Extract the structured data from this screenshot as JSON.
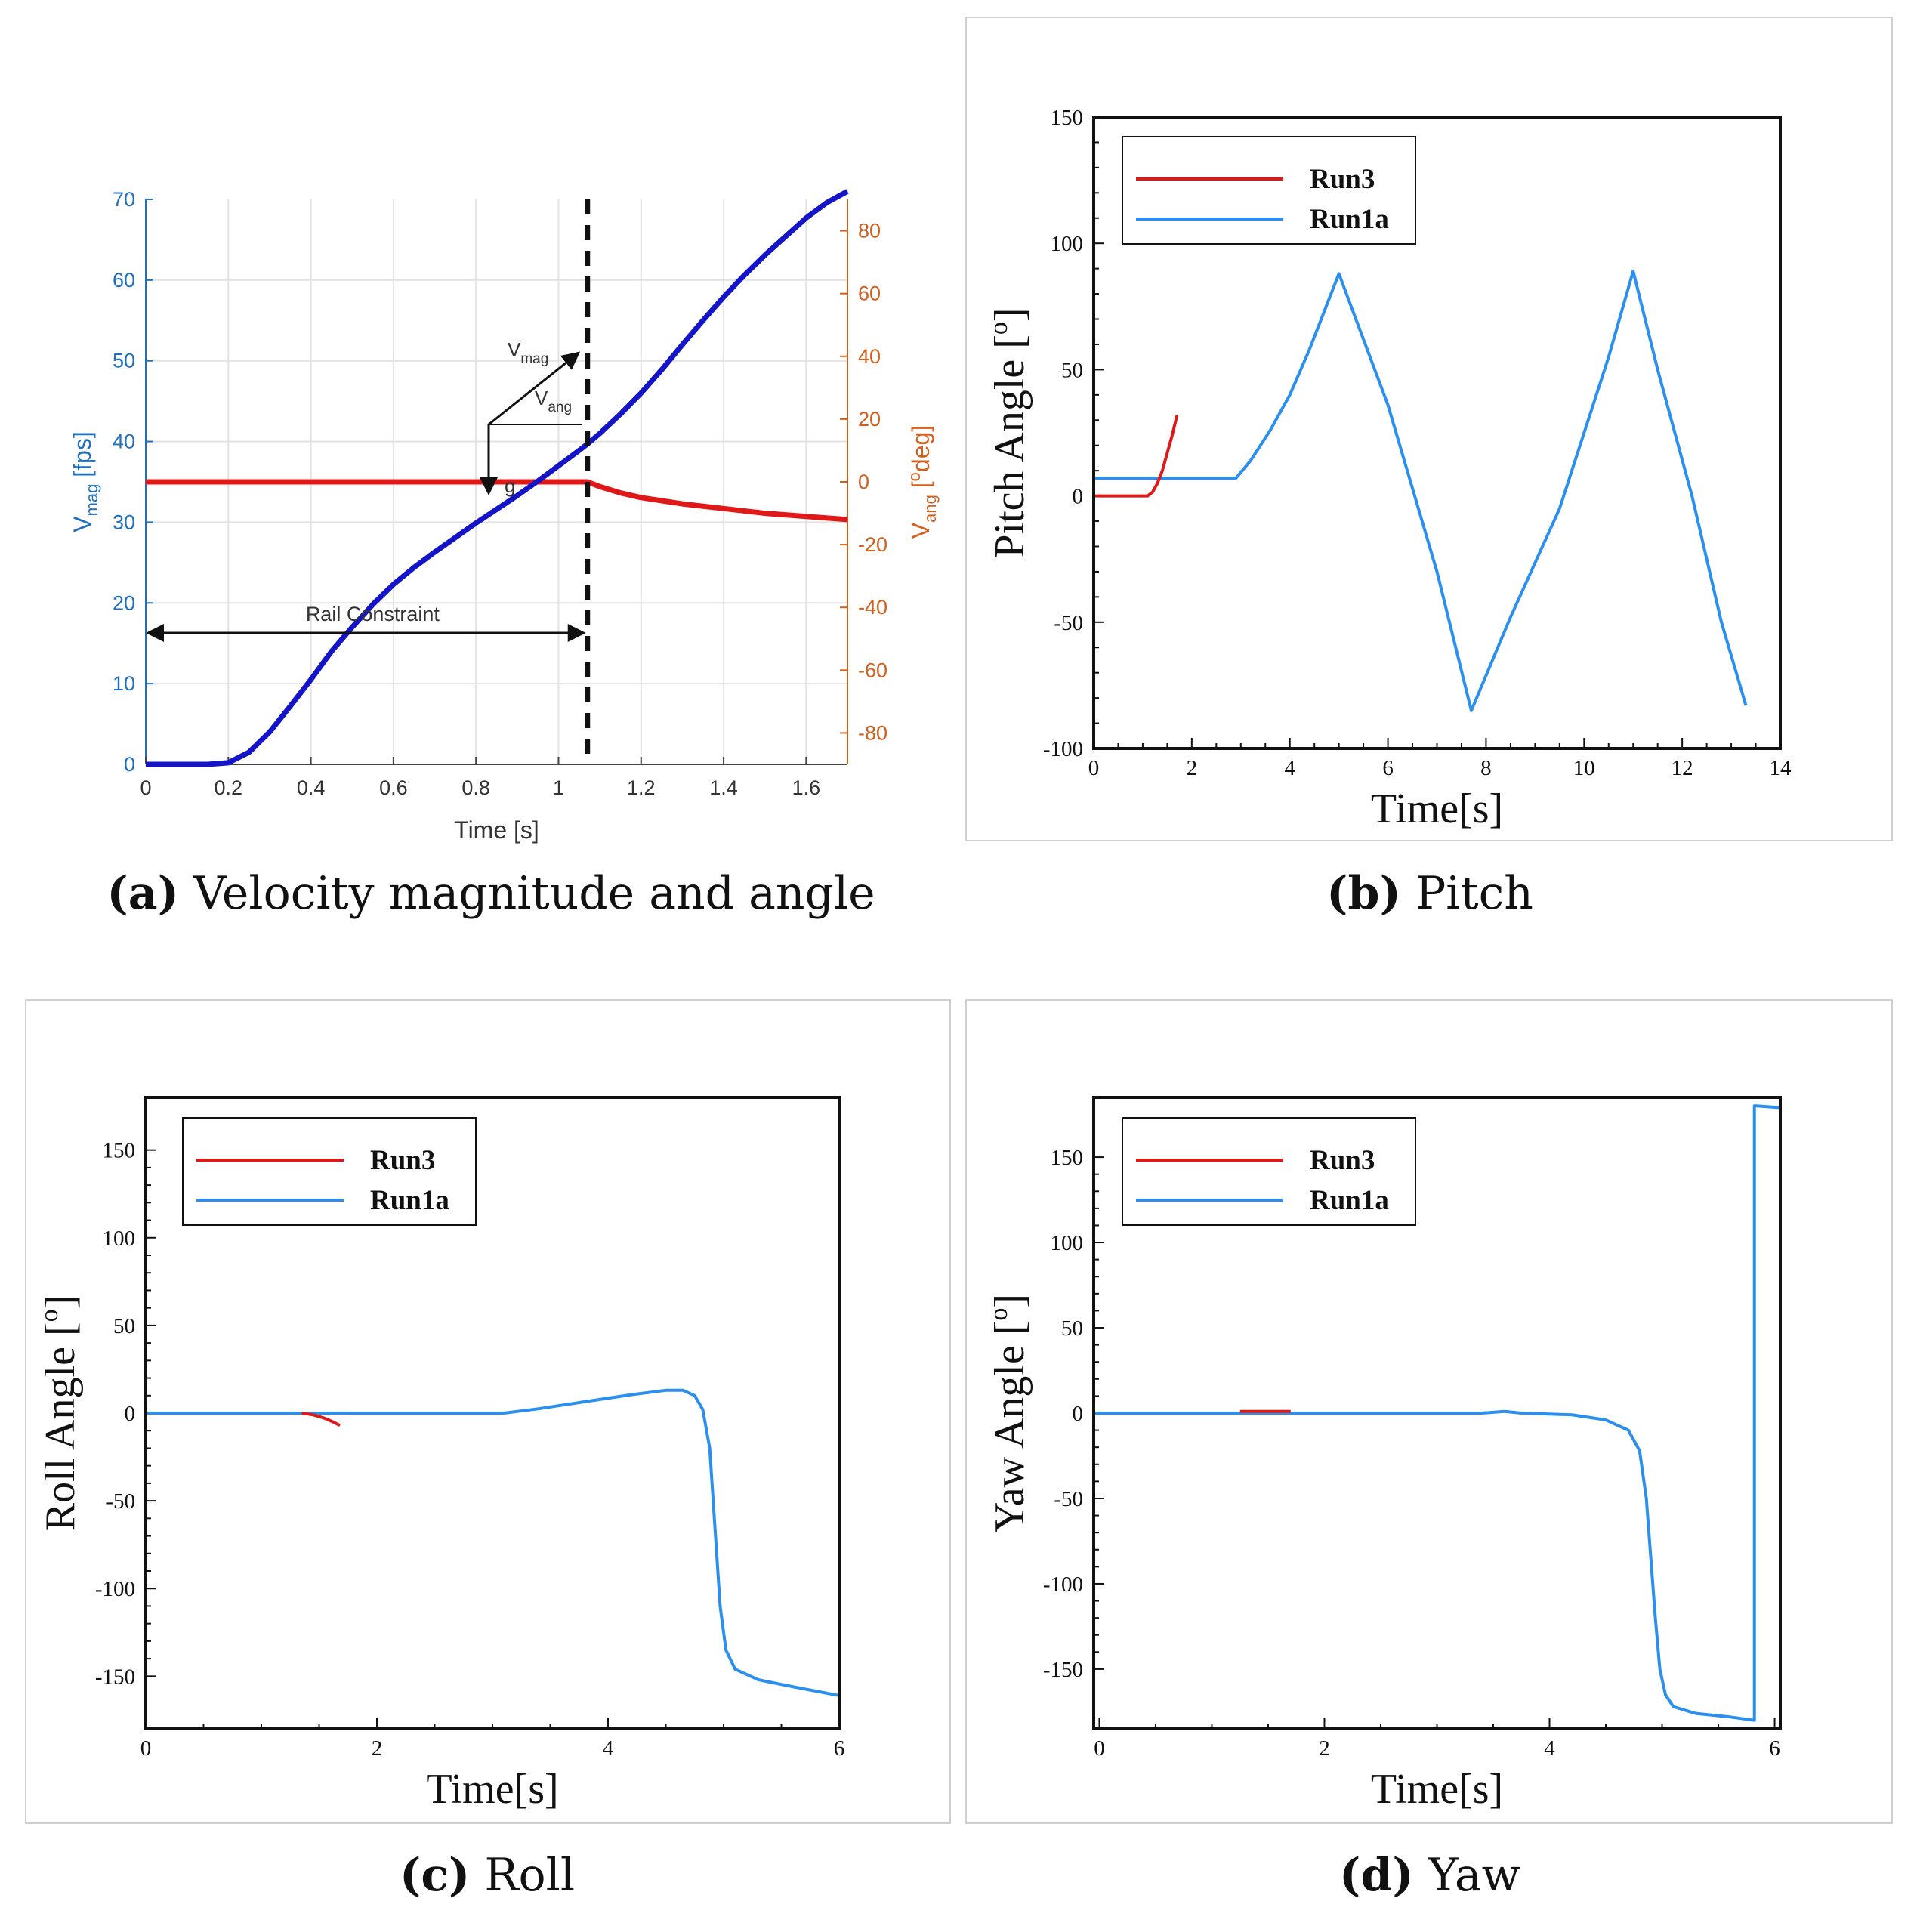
{
  "colors": {
    "mag": "#1f6fbf",
    "ang": "#d35f1f",
    "blue_line": "#1414c8",
    "red_line": "#e01818",
    "run3": "#e01818",
    "run1a": "#2b8ff0"
  },
  "chart_data": [
    {
      "id": "a",
      "type": "line",
      "caption": {
        "letter": "(a)",
        "text": " Velocity magnitude and angle"
      },
      "xlabel": "Time [s]",
      "ylabel_left": {
        "main": "V",
        "sub": "mag",
        "rest": " [fps]"
      },
      "ylabel_right": {
        "main": "V",
        "sub": "ang",
        "rest": " [",
        "sup": "o",
        "rest2": "deg]"
      },
      "xlim": [
        0,
        1.7
      ],
      "ylim_left": [
        0,
        70
      ],
      "ylim_right": [
        -90,
        90
      ],
      "xticks": [
        0,
        0.2,
        0.4,
        0.6,
        0.8,
        1,
        1.2,
        1.4,
        1.6
      ],
      "yticks_left": [
        0,
        10,
        20,
        30,
        40,
        50,
        60,
        70
      ],
      "yticks_right": [
        -80,
        -60,
        -40,
        -20,
        0,
        20,
        40,
        60,
        80
      ],
      "grid": true,
      "series": [
        {
          "name": "V_mag",
          "axis": "left",
          "x": [
            0,
            0.15,
            0.2,
            0.25,
            0.3,
            0.35,
            0.4,
            0.45,
            0.5,
            0.55,
            0.6,
            0.65,
            0.7,
            0.75,
            0.8,
            0.85,
            0.9,
            0.95,
            1.0,
            1.05,
            1.07,
            1.1,
            1.15,
            1.2,
            1.25,
            1.3,
            1.35,
            1.4,
            1.45,
            1.5,
            1.55,
            1.6,
            1.65,
            1.7
          ],
          "values": [
            0,
            0,
            0.2,
            1.5,
            4,
            7.2,
            10.5,
            14,
            17,
            19.8,
            22.3,
            24.4,
            26.3,
            28.1,
            29.9,
            31.6,
            33.3,
            35.1,
            37,
            38.9,
            39.7,
            41,
            43.4,
            46,
            48.9,
            52,
            55,
            57.9,
            60.6,
            63.1,
            65.4,
            67.7,
            69.6,
            71
          ]
        },
        {
          "name": "V_ang",
          "axis": "right",
          "x": [
            0,
            1.0,
            1.07,
            1.1,
            1.15,
            1.2,
            1.3,
            1.4,
            1.5,
            1.6,
            1.7
          ],
          "values": [
            0,
            0,
            0,
            -1.5,
            -3.5,
            -5,
            -7,
            -8.5,
            -10,
            -11,
            -12
          ]
        }
      ],
      "annotations": {
        "vmag": {
          "main": "V",
          "sub": "mag"
        },
        "vang": {
          "main": "V",
          "sub": "ang"
        },
        "g": "g",
        "rail": "Rail Constraint",
        "rail_end_time": 1.07
      }
    },
    {
      "id": "b",
      "type": "line",
      "caption": {
        "letter": "(b)",
        "text": " Pitch"
      },
      "xlabel": "Time[s]",
      "ylabel": "Pitch Angle [",
      "ylabel_sup": "o",
      "ylabel_end": "]",
      "xlim": [
        0,
        14
      ],
      "ylim": [
        -100,
        150
      ],
      "xticks": [
        0,
        2,
        4,
        6,
        8,
        10,
        12,
        14
      ],
      "yticks": [
        -100,
        -50,
        0,
        50,
        100,
        150
      ],
      "legend": [
        "Run3",
        "Run1a"
      ],
      "series": [
        {
          "name": "Run3",
          "x": [
            0,
            1.1,
            1.2,
            1.3,
            1.4,
            1.5,
            1.6,
            1.7
          ],
          "values": [
            0,
            0,
            1.5,
            5,
            10,
            17,
            24,
            32
          ]
        },
        {
          "name": "Run1a",
          "x": [
            0,
            2.9,
            3.2,
            3.6,
            4.0,
            4.4,
            4.8,
            5.0,
            6.0,
            7.0,
            7.7,
            8.5,
            9.5,
            10.5,
            11.0,
            11.5,
            12.2,
            12.8,
            13.3
          ],
          "values": [
            7,
            7,
            14,
            26,
            40,
            58,
            78,
            88,
            36,
            -30,
            -85,
            -48,
            -5,
            55,
            89,
            50,
            0,
            -50,
            -83
          ]
        }
      ]
    },
    {
      "id": "c",
      "type": "line",
      "caption": {
        "letter": "(c)",
        "text": " Roll"
      },
      "xlabel": "Time[s]",
      "ylabel": "Roll Angle [",
      "ylabel_sup": "o",
      "ylabel_end": "]",
      "xlim": [
        0,
        6
      ],
      "ylim": [
        -180,
        180
      ],
      "xticks": [
        0,
        2,
        4,
        6
      ],
      "yticks": [
        -150,
        -100,
        -50,
        0,
        50,
        100,
        150
      ],
      "legend": [
        "Run3",
        "Run1a"
      ],
      "series": [
        {
          "name": "Run3",
          "x": [
            1.35,
            1.45,
            1.55,
            1.62,
            1.68
          ],
          "values": [
            0,
            -1,
            -3,
            -5,
            -7
          ]
        },
        {
          "name": "Run1a",
          "x": [
            0,
            3.1,
            3.4,
            3.8,
            4.2,
            4.5,
            4.65,
            4.75,
            4.82,
            4.88,
            4.93,
            4.97,
            5.02,
            5.1,
            5.3,
            5.6,
            6.0
          ],
          "values": [
            0,
            0,
            2.5,
            6.5,
            10.5,
            13,
            13,
            10,
            2,
            -20,
            -70,
            -110,
            -135,
            -146,
            -152,
            -156,
            -161
          ]
        }
      ]
    },
    {
      "id": "d",
      "type": "line",
      "caption": {
        "letter": "(d)",
        "text": " Yaw"
      },
      "xlabel": "Time[s]",
      "ylabel": "Yaw Angle [",
      "ylabel_sup": "o",
      "ylabel_end": "]",
      "xlim": [
        -0.05,
        6.05
      ],
      "ylim": [
        -185,
        185
      ],
      "xticks": [
        0,
        2,
        4,
        6
      ],
      "yticks": [
        -150,
        -100,
        -50,
        0,
        50,
        100,
        150
      ],
      "legend": [
        "Run3",
        "Run1a"
      ],
      "series": [
        {
          "name": "Run3",
          "x": [
            1.25,
            1.7
          ],
          "values": [
            1,
            1
          ]
        },
        {
          "name": "Run1a",
          "x": [
            -0.05,
            3.4,
            3.6,
            3.75,
            4.2,
            4.5,
            4.7,
            4.8,
            4.86,
            4.9,
            4.94,
            4.98,
            5.03,
            5.1,
            5.3,
            5.6,
            5.82,
            5.82,
            5.84,
            6.05
          ],
          "values": [
            0,
            0,
            1,
            0,
            -1,
            -4,
            -10,
            -22,
            -50,
            -85,
            -120,
            -150,
            -165,
            -172,
            -176,
            -178,
            -180,
            180,
            180,
            179
          ]
        }
      ]
    }
  ]
}
